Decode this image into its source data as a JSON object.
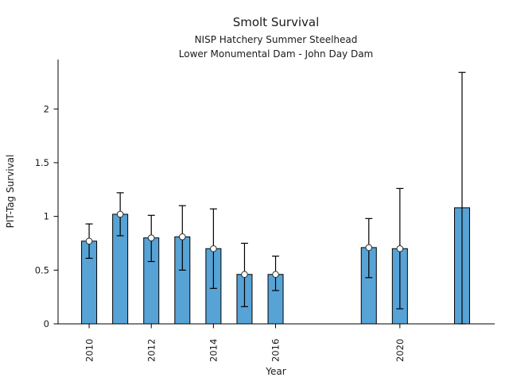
{
  "chart_data": {
    "type": "bar",
    "title": "Smolt Survival",
    "subtitle1": "NISP Hatchery Summer Steelhead",
    "subtitle2": "Lower Monumental Dam - John Day Dam",
    "xlabel": "Year",
    "ylabel": "PIT-Tag Survival",
    "x": [
      2010,
      2011,
      2012,
      2013,
      2014,
      2015,
      2016,
      2019,
      2020,
      2022
    ],
    "values": [
      0.77,
      1.02,
      0.8,
      0.81,
      0.7,
      0.46,
      0.46,
      0.71,
      0.7,
      1.08
    ],
    "error_low": [
      0.61,
      0.82,
      0.58,
      0.5,
      0.33,
      0.16,
      0.31,
      0.43,
      0.14,
      0.0
    ],
    "error_high": [
      0.93,
      1.22,
      1.01,
      1.1,
      1.07,
      0.75,
      0.63,
      0.98,
      1.26,
      2.34
    ],
    "point_marker_shown": [
      true,
      true,
      true,
      true,
      true,
      true,
      true,
      true,
      true,
      false
    ],
    "xticks": [
      2010,
      2012,
      2014,
      2016,
      2020
    ],
    "yticks": [
      0,
      0.5,
      1,
      1.5,
      2
    ],
    "xlim": [
      2009,
      2023.05
    ],
    "ylim": [
      0,
      2.46
    ],
    "grid": false,
    "legend": null,
    "bar_color": "#57A3D6",
    "bar_edge_color": "#000000",
    "errorbar_color": "#000000",
    "marker_style": "open-circle",
    "marker_edge_color": "#2b2b2b"
  }
}
